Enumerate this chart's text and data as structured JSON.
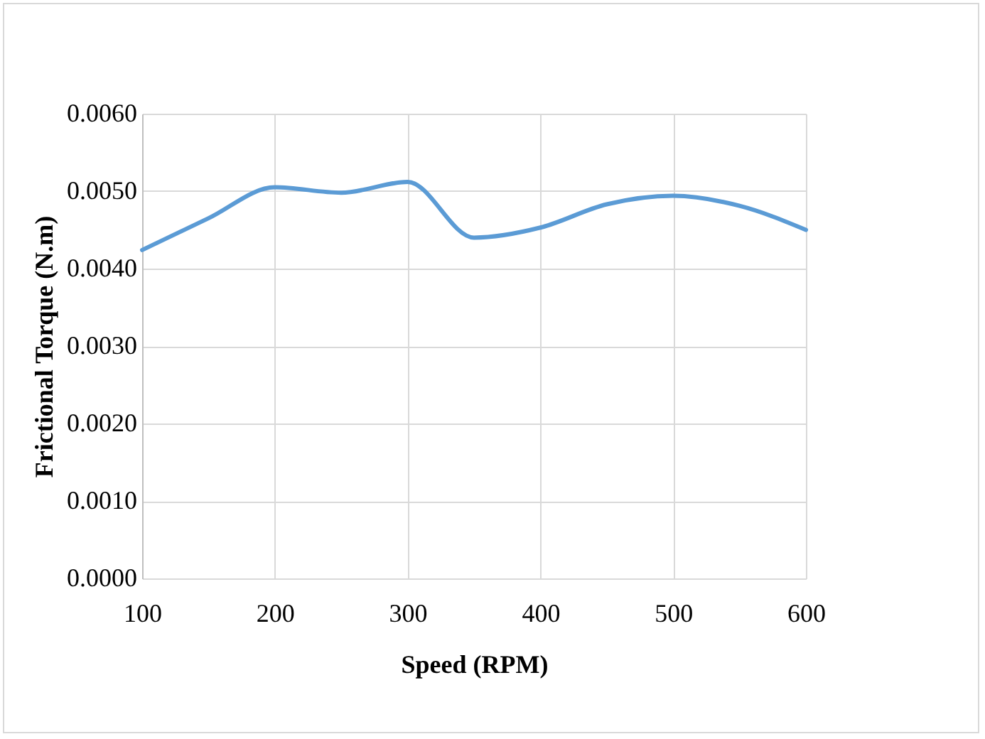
{
  "chart_data": {
    "type": "line",
    "xlabel": "Speed (RPM)",
    "ylabel": "Frictional Torque (N.m)",
    "x": [
      100,
      150,
      200,
      250,
      300,
      350,
      400,
      450,
      500,
      550,
      600
    ],
    "series": [
      {
        "color": "#5b9bd5",
        "values": [
          0.00424,
          0.00465,
          0.00505,
          0.00498,
          0.00512,
          0.0044,
          0.00453,
          0.00483,
          0.00494,
          0.00481,
          0.0045
        ]
      }
    ],
    "xlim": [
      100,
      600
    ],
    "xticks": [
      100,
      200,
      300,
      400,
      500,
      600
    ],
    "ylim": [
      0,
      0.006
    ],
    "yticks": [
      {
        "value": 0,
        "label": "0.0000"
      },
      {
        "value": 0.001,
        "label": "0.0010"
      },
      {
        "value": 0.002,
        "label": "0.0020"
      },
      {
        "value": 0.003,
        "label": "0.0030"
      },
      {
        "value": 0.004,
        "label": "0.0040"
      },
      {
        "value": 0.005,
        "label": "0.0050"
      },
      {
        "value": 0.006,
        "label": "0.0060"
      }
    ],
    "grid": true,
    "marker": "none",
    "line_style": "solid"
  }
}
